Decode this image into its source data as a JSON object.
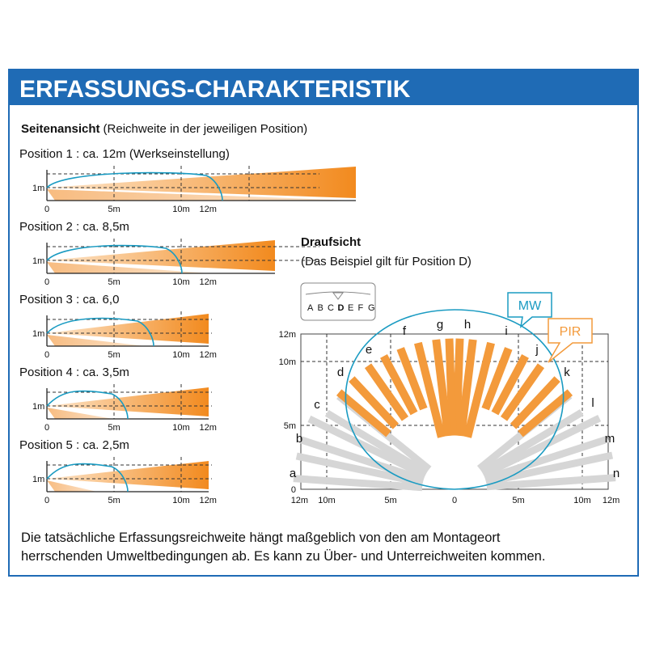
{
  "header": {
    "title": "ERFASSUNGS-CHARAKTERISTIK"
  },
  "side_view": {
    "title": "Seitenansicht",
    "subtitle": "(Reichweite in der jeweiligen Position)",
    "y_label": "1m",
    "x_labels": [
      "0",
      "5m",
      "10m",
      "12m"
    ],
    "positions": [
      {
        "label": "Position 1 : ca. 12m (Werkseinstellung)"
      },
      {
        "label": "Position 2 : ca. 8,5m"
      },
      {
        "label": "Position 3 : ca. 6,0"
      },
      {
        "label": "Position 4 : ca. 3,5m"
      },
      {
        "label": "Position 5 : ca. 2,5m"
      }
    ]
  },
  "top_view": {
    "title": "Draufsicht",
    "subtitle": "(Das Beispiel gilt für Position D)",
    "selector": [
      "A",
      "B",
      "C",
      "D",
      "E",
      "F",
      "G"
    ],
    "mw": "MW",
    "pir": "PIR",
    "zones": [
      "a",
      "b",
      "c",
      "d",
      "e",
      "f",
      "g",
      "h",
      "i",
      "j",
      "k",
      "l",
      "m",
      "n"
    ],
    "y_labels": [
      "12m",
      "10m",
      "5m",
      "0"
    ],
    "x_labels": [
      "12m",
      "10m",
      "5m",
      "0",
      "5m",
      "10m",
      "12m"
    ]
  },
  "footer": {
    "lines": [
      "Die tatsächliche Erfassungsreichweite hängt maßgeblich von den am Montageort",
      "herrschenden Umweltbedingungen ab. Es kann zu Über- und Unterreichweiten kommen."
    ]
  }
}
